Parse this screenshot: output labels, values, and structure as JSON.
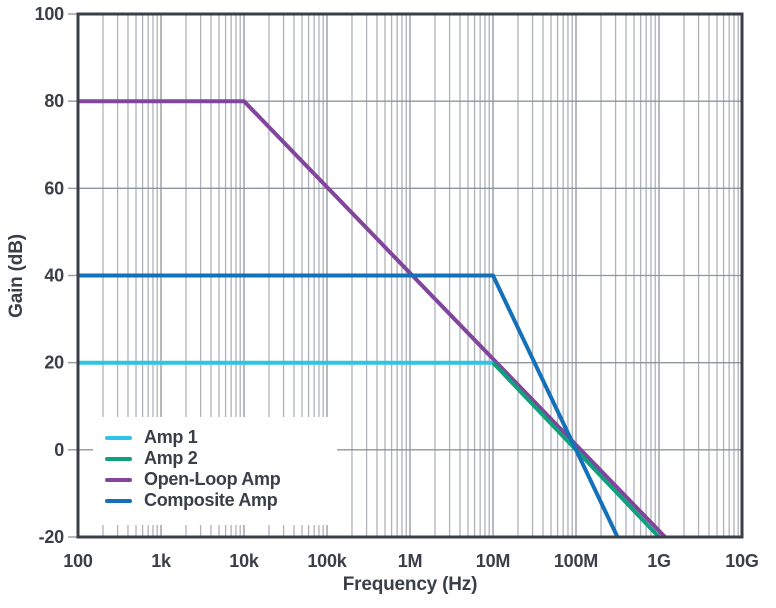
{
  "chart_data": {
    "type": "line",
    "title": "",
    "xlabel": "Frequency (Hz)",
    "ylabel": "Gain (dB)",
    "x_scale": "log",
    "y_scale": "linear",
    "xlim": [
      100,
      10000000000
    ],
    "ylim": [
      -20,
      100
    ],
    "grid": true,
    "legend_position": "inside-bottom-left",
    "x_ticks": [
      {
        "value": 100,
        "label": "100"
      },
      {
        "value": 1000,
        "label": "1k"
      },
      {
        "value": 10000,
        "label": "10k"
      },
      {
        "value": 100000,
        "label": "100k"
      },
      {
        "value": 1000000,
        "label": "1M"
      },
      {
        "value": 10000000,
        "label": "10M"
      },
      {
        "value": 100000000,
        "label": "100M"
      },
      {
        "value": 1000000000,
        "label": "1G"
      },
      {
        "value": 10000000000,
        "label": "10G"
      }
    ],
    "y_ticks": [
      {
        "value": 100,
        "label": "100"
      },
      {
        "value": 80,
        "label": "80"
      },
      {
        "value": 60,
        "label": "60"
      },
      {
        "value": 40,
        "label": "40"
      },
      {
        "value": 20,
        "label": "20"
      },
      {
        "value": 0,
        "label": "0"
      },
      {
        "value": -20,
        "label": "-20"
      }
    ],
    "series": [
      {
        "name": "Amp 1",
        "color": "#2EC4E6",
        "points": [
          [
            100,
            20
          ],
          [
            10000000,
            20
          ]
        ]
      },
      {
        "name": "Amp 2",
        "color": "#0FA17E",
        "points": [
          [
            10000000,
            20
          ],
          [
            1000000000,
            -20
          ]
        ]
      },
      {
        "name": "Open-Loop Amp",
        "color": "#81459B",
        "points": [
          [
            100,
            80
          ],
          [
            10000,
            80
          ],
          [
            1000000000,
            -20
          ]
        ]
      },
      {
        "name": "Composite Amp",
        "color": "#1470B8",
        "points": [
          [
            100,
            40
          ],
          [
            10000000,
            40
          ],
          [
            316227766,
            -20
          ]
        ]
      }
    ],
    "legend": [
      "Amp 1",
      "Amp 2",
      "Open-Loop Amp",
      "Composite Amp"
    ]
  },
  "colors": {
    "axis": "#3A3F47",
    "text": "#3A3F47",
    "grid_major": "#8F959D",
    "grid_minor": "#AEB2B8",
    "tick": "#9AA0A6",
    "legend_bg": "#FFFFFF"
  }
}
